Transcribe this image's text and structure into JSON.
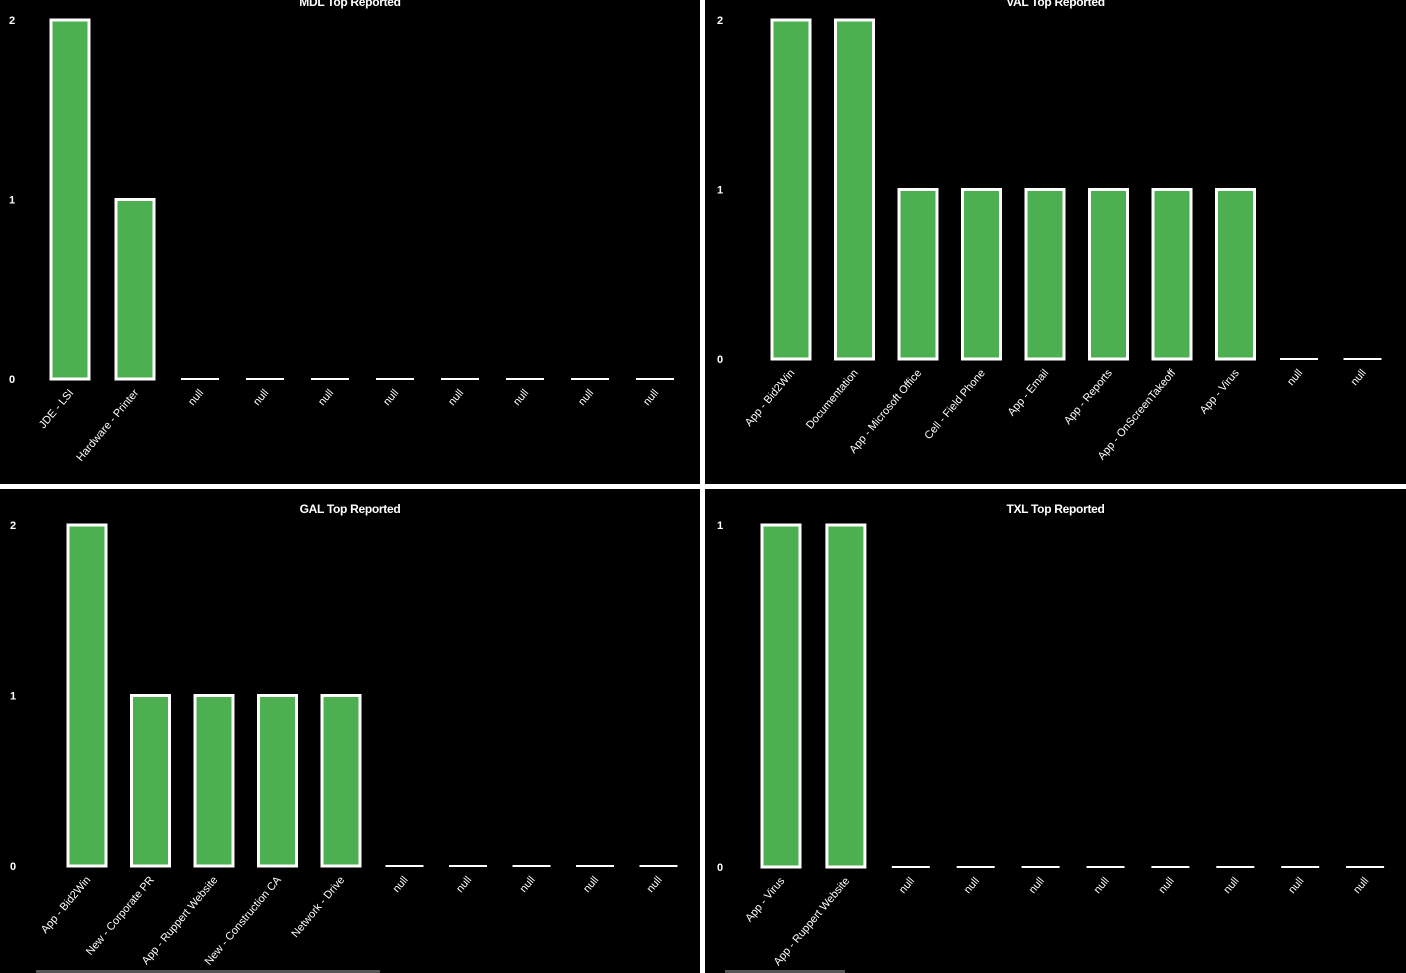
{
  "bar_color": "#4caf50",
  "bar_stroke": "#ffffff",
  "background": "#000000",
  "text_color": "#ffffff",
  "chart_data": [
    {
      "type": "bar",
      "title": "MDL Top Reported",
      "categories": [
        "JDE - LSI",
        "Hardware - Printer",
        "null",
        "null",
        "null",
        "null",
        "null",
        "null",
        "null",
        "null"
      ],
      "values": [
        2,
        1,
        0,
        0,
        0,
        0,
        0,
        0,
        0,
        0
      ],
      "yticks": [
        0,
        1,
        2
      ],
      "ylim": [
        0,
        2
      ]
    },
    {
      "type": "bar",
      "title": "VAL Top Reported",
      "categories": [
        "App - Bid2Win",
        "Documentation",
        "App - Microsoft Office",
        "Cell - Field Phone",
        "App - Email",
        "App - Reports",
        "App - OnScreenTakeoff",
        "App - Virus",
        "null",
        "null"
      ],
      "values": [
        2,
        2,
        1,
        1,
        1,
        1,
        1,
        1,
        0,
        0
      ],
      "yticks": [
        0,
        1,
        2
      ],
      "ylim": [
        0,
        2
      ]
    },
    {
      "type": "bar",
      "title": "GAL Top Reported",
      "categories": [
        "App - Bid2Win",
        "New - Corporate PR",
        "App - Ruppert Website",
        "New - Construction CA",
        "Network - Drive",
        "null",
        "null",
        "null",
        "null",
        "null"
      ],
      "values": [
        2,
        1,
        1,
        1,
        1,
        0,
        0,
        0,
        0,
        0
      ],
      "yticks": [
        0,
        1,
        2
      ],
      "ylim": [
        0,
        2
      ]
    },
    {
      "type": "bar",
      "title": "TXL Top Reported",
      "categories": [
        "App - Virus",
        "App - Ruppert Website",
        "null",
        "null",
        "null",
        "null",
        "null",
        "null",
        "null",
        "null"
      ],
      "values": [
        1,
        1,
        0,
        0,
        0,
        0,
        0,
        0,
        0,
        0
      ],
      "yticks": [
        0,
        1
      ],
      "ylim": [
        0,
        1
      ]
    }
  ]
}
